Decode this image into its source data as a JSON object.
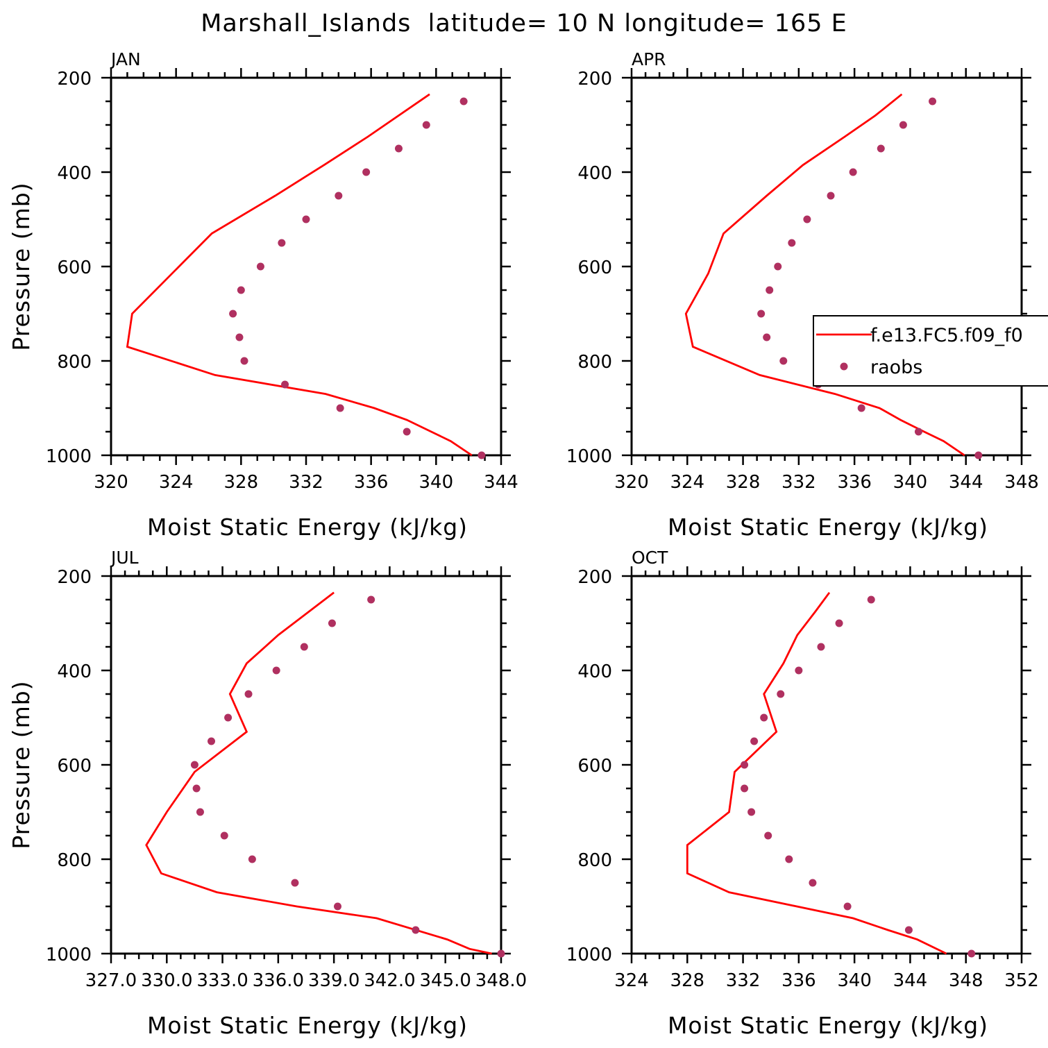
{
  "figure": {
    "title": "Marshall_Islands  latitude= 10 N longitude= 165 E"
  },
  "chart_data": [
    {
      "type": "line",
      "panel": "JAN",
      "xlabel": "Moist Static Energy (kJ/kg)",
      "ylabel": "Pressure (mb)",
      "xlim": [
        320,
        344
      ],
      "xticks": [
        320,
        324,
        328,
        332,
        336,
        340,
        344
      ],
      "xtick_labels": [
        "320",
        "324",
        "328",
        "332",
        "336",
        "340",
        "344"
      ],
      "ylim": [
        200,
        1000
      ],
      "yticks": [
        200,
        400,
        600,
        800,
        1000
      ],
      "ytick_labels": [
        "200",
        "400",
        "600",
        "800",
        "1000"
      ],
      "y_reversed": true,
      "color_model": "#ff0000",
      "color_obs": "#b03060",
      "model": {
        "p": [
          235,
          325,
          385,
          450,
          530,
          700,
          770,
          830,
          870,
          900,
          925,
          950,
          970,
          1000
        ],
        "mse": [
          339.6,
          335.8,
          333.1,
          330.1,
          326.2,
          321.3,
          321.0,
          326.4,
          333.2,
          336.2,
          338.2,
          339.7,
          340.9,
          342.2
        ]
      },
      "obs": {
        "p": [
          250,
          300,
          350,
          400,
          450,
          500,
          550,
          600,
          650,
          700,
          750,
          800,
          850,
          900,
          950,
          1000
        ],
        "mse": [
          341.7,
          339.4,
          337.7,
          335.7,
          334.0,
          332.0,
          330.5,
          329.2,
          328.0,
          327.5,
          327.9,
          328.2,
          330.7,
          334.1,
          338.2,
          342.8
        ]
      }
    },
    {
      "type": "line",
      "panel": "APR",
      "xlabel": "Moist Static Energy (kJ/kg)",
      "ylabel": "",
      "xlim": [
        320,
        348
      ],
      "xticks": [
        320,
        324,
        328,
        332,
        336,
        340,
        344,
        348
      ],
      "xtick_labels": [
        "320",
        "324",
        "328",
        "332",
        "336",
        "340",
        "344",
        "348"
      ],
      "ylim": [
        200,
        1000
      ],
      "yticks": [
        200,
        400,
        600,
        800,
        1000
      ],
      "ytick_labels": [
        "200",
        "400",
        "600",
        "800",
        "1000"
      ],
      "y_reversed": true,
      "color_model": "#ff0000",
      "color_obs": "#b03060",
      "legend": {
        "placement": "right",
        "entries": [
          "f.e13.FC5.f09_f0",
          "raobs"
        ]
      },
      "model": {
        "p": [
          235,
          280,
          325,
          385,
          450,
          530,
          615,
          700,
          770,
          830,
          870,
          900,
          925,
          950,
          970,
          1000
        ],
        "mse": [
          339.4,
          337.5,
          335.3,
          332.3,
          329.7,
          326.6,
          325.5,
          323.9,
          324.4,
          329.2,
          334.6,
          337.8,
          339.3,
          341.0,
          342.4,
          343.9
        ]
      },
      "obs": {
        "p": [
          250,
          300,
          350,
          400,
          450,
          500,
          550,
          600,
          650,
          700,
          750,
          800,
          850,
          900,
          950,
          1000
        ],
        "mse": [
          341.6,
          339.5,
          337.9,
          335.9,
          334.3,
          332.6,
          331.5,
          330.5,
          329.9,
          329.3,
          329.7,
          330.9,
          333.4,
          336.5,
          340.6,
          344.9
        ]
      }
    },
    {
      "type": "line",
      "panel": "JUL",
      "xlabel": "Moist Static Energy (kJ/kg)",
      "ylabel": "Pressure (mb)",
      "xlim": [
        327.0,
        348.0
      ],
      "xticks": [
        327.0,
        330.0,
        333.0,
        336.0,
        339.0,
        342.0,
        345.0,
        348.0
      ],
      "xtick_labels": [
        "327.0",
        "330.0",
        "333.0",
        "336.0",
        "339.0",
        "342.0",
        "345.0",
        "348.0"
      ],
      "ylim": [
        200,
        1000
      ],
      "yticks": [
        200,
        400,
        600,
        800,
        1000
      ],
      "ytick_labels": [
        "200",
        "400",
        "600",
        "800",
        "1000"
      ],
      "y_reversed": true,
      "color_model": "#ff0000",
      "color_obs": "#b03060",
      "model": {
        "p": [
          235,
          325,
          385,
          450,
          530,
          615,
          700,
          770,
          830,
          870,
          900,
          925,
          970,
          990,
          1000
        ],
        "mse": [
          339.0,
          336.0,
          334.3,
          333.4,
          334.3,
          331.5,
          330.0,
          328.9,
          329.7,
          332.7,
          337.0,
          341.3,
          345.1,
          346.3,
          347.5
        ]
      },
      "obs": {
        "p": [
          250,
          300,
          350,
          400,
          450,
          500,
          550,
          600,
          650,
          700,
          750,
          800,
          850,
          900,
          950,
          1000
        ],
        "mse": [
          341.0,
          338.9,
          337.4,
          335.9,
          334.4,
          333.3,
          332.4,
          331.5,
          331.6,
          331.8,
          333.1,
          334.6,
          336.9,
          339.2,
          343.4,
          348.0
        ]
      }
    },
    {
      "type": "line",
      "panel": "OCT",
      "xlabel": "Moist Static Energy (kJ/kg)",
      "ylabel": "",
      "xlim": [
        324,
        352
      ],
      "xticks": [
        324,
        328,
        332,
        336,
        340,
        344,
        348,
        352
      ],
      "xtick_labels": [
        "324",
        "328",
        "332",
        "336",
        "340",
        "344",
        "348",
        "352"
      ],
      "ylim": [
        200,
        1000
      ],
      "yticks": [
        200,
        400,
        600,
        800,
        1000
      ],
      "ytick_labels": [
        "200",
        "400",
        "600",
        "800",
        "1000"
      ],
      "y_reversed": true,
      "color_model": "#ff0000",
      "color_obs": "#b03060",
      "model": {
        "p": [
          235,
          275,
          325,
          385,
          450,
          530,
          615,
          700,
          770,
          830,
          870,
          925,
          950,
          970,
          1000
        ],
        "mse": [
          338.2,
          337.2,
          335.9,
          334.9,
          333.5,
          334.4,
          331.4,
          331.0,
          328.0,
          328.0,
          331.0,
          339.9,
          342.4,
          344.5,
          346.6
        ]
      },
      "obs": {
        "p": [
          250,
          300,
          350,
          400,
          450,
          500,
          550,
          600,
          650,
          700,
          750,
          800,
          850,
          900,
          950,
          1000
        ],
        "mse": [
          341.2,
          338.9,
          337.6,
          336.0,
          334.7,
          333.5,
          332.8,
          332.1,
          332.1,
          332.6,
          333.8,
          335.3,
          337.0,
          339.5,
          343.9,
          348.4
        ]
      }
    }
  ]
}
